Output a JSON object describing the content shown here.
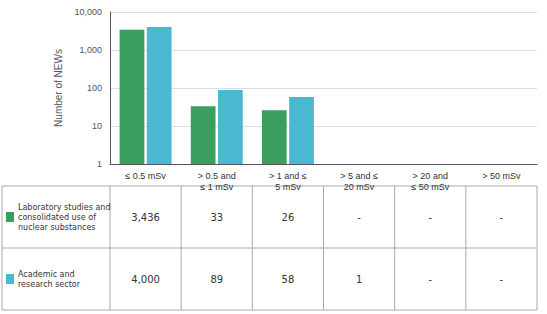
{
  "chart_data": {
    "type": "bar",
    "categories": [
      "≤ 0.5 mSv",
      "> 0.5 and\n≤ 1 mSv",
      "> 1 and ≤\n5 mSv",
      "> 5 and ≤\n20 mSv",
      "> 20 and\n≤ 50 mSv",
      "> 50 mSv"
    ],
    "series": [
      {
        "name": "Laboratory studies and\nconsolidated use of\nnuclear substances",
        "color": "#3a9e5f",
        "values": [
          3436,
          33,
          26,
          null,
          null,
          null
        ],
        "value_labels": [
          "3,436",
          "33",
          "26",
          "-",
          "-",
          "-"
        ]
      },
      {
        "name": "Academic and\nresearch sector",
        "color": "#4ab8d0",
        "values": [
          4000,
          89,
          58,
          1,
          null,
          null
        ],
        "value_labels": [
          "4,000",
          "89",
          "58",
          "1",
          "-",
          "-"
        ]
      }
    ],
    "y_label": "Number of NEWs",
    "log": "y",
    "ylim": [
      1,
      10000
    ],
    "yticks": [
      1,
      10,
      100,
      {
        "value": 1000,
        "label": "1,000"
      },
      {
        "value": 10000,
        "label": "10,000"
      }
    ],
    "grid": true
  }
}
